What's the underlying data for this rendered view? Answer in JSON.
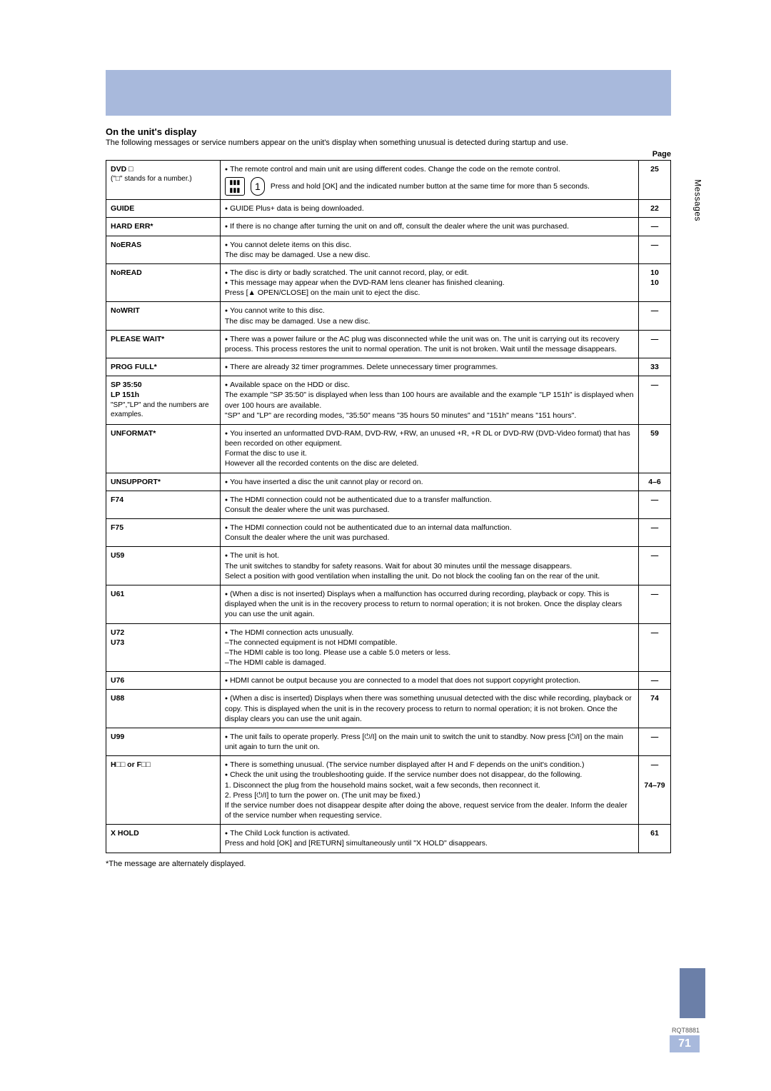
{
  "section": {
    "title": "On the unit's display",
    "desc": "The following messages or service numbers appear on the unit's display when something unusual is detected during startup and use.",
    "page_label": "Page"
  },
  "side_text": "Messages",
  "footer": {
    "code": "RQT8881",
    "page": "71"
  },
  "rows": [
    {
      "code": "DVD □",
      "code_sub": "(\"□\" stands for a number.)",
      "desc_html": "<ul class='b'><li>The remote control and main unit are using different codes. Change the code on the remote control.</li></ul><div class='callout'><span class='callout-ic1'>▮▮▮<br>▮▮▮</span><span class='callout-ic2'>1</span><span class='callout-txt'>Press and hold [OK] and the indicated number button at the same time for more than 5 seconds.</span></div>",
      "page": "25"
    },
    {
      "code": "GUIDE",
      "desc_html": "<ul class='b'><li>GUIDE Plus+ data is being downloaded.</li></ul>",
      "page": "22"
    },
    {
      "code": "HARD ERR*",
      "desc_html": "<ul class='b'><li>If there is no change after turning the unit on and off, consult the dealer where the unit was purchased.</li></ul>",
      "page": "—"
    },
    {
      "code": "NoERAS",
      "desc_html": "<ul class='b'><li>You cannot delete items on this disc.<br>The disc may be damaged. Use a new disc.</li></ul>",
      "page": "—"
    },
    {
      "code": "NoREAD",
      "desc_html": "<ul class='b'><li>The disc is dirty or badly scratched. The unit cannot record, play, or edit.</li><li>This message may appear when the DVD-RAM lens cleaner has finished cleaning.<br>Press [▲ OPEN/CLOSE] on the main unit to eject the disc.</li></ul>",
      "page": "10<br>10"
    },
    {
      "code": "NoWRIT",
      "desc_html": "<ul class='b'><li>You cannot write to this disc.<br>The disc may be damaged. Use a new disc.</li></ul>",
      "page": "—"
    },
    {
      "code": "PLEASE WAIT*",
      "desc_html": "<ul class='b'><li>There was a power failure or the AC plug was disconnected while the unit was on. The unit is carrying out its recovery process. This process restores the unit to normal operation. The unit is not broken. Wait until the message disappears.</li></ul>",
      "page": "—"
    },
    {
      "code": "PROG FULL*",
      "desc_html": "<ul class='b'><li>There are already 32 timer programmes. Delete unnecessary timer programmes.</li></ul>",
      "page": "33"
    },
    {
      "code": "SP 35:50<br>LP 151h",
      "code_sub": "\"SP\",\"LP\" and the numbers are examples.",
      "desc_html": "<ul class='b'><li>Available space on the HDD or disc.<br>The example \"SP 35:50\" is displayed when less than 100 hours are available and the example \"LP 151h\" is displayed when over 100 hours are available.<br>\"SP\" and \"LP\" are recording modes, \"35:50\" means \"35 hours 50 minutes\" and \"151h\" means \"151 hours\".</li></ul>",
      "page": "—"
    },
    {
      "code": "UNFORMAT*",
      "desc_html": "<ul class='b'><li>You inserted an unformatted DVD-RAM, DVD-RW, +RW, an unused +R, +R DL or DVD-RW (DVD-Video format) that has been recorded on other equipment.<br>Format the disc to use it.<br>However all the recorded contents on the disc are deleted.</li></ul>",
      "page": "59"
    },
    {
      "code": "UNSUPPORT*",
      "desc_html": "<ul class='b'><li>You have inserted a disc the unit cannot play or record on.</li></ul>",
      "page": "4–6"
    },
    {
      "code": "F74",
      "desc_html": "<ul class='b'><li>The HDMI connection could not be authenticated due to a transfer malfunction.<br>Consult the dealer where the unit was purchased.</li></ul>",
      "page": "—"
    },
    {
      "code": "F75",
      "desc_html": "<ul class='b'><li>The HDMI connection could not be authenticated due to an internal data malfunction.<br>Consult the dealer where the unit was purchased.</li></ul>",
      "page": "—"
    },
    {
      "code": "U59",
      "desc_html": "<ul class='b'><li>The unit is hot.<br>The unit switches to standby for safety reasons. Wait for about 30 minutes until the message disappears.<br>Select a position with good ventilation when installing the unit. Do not block the cooling fan on the rear of the unit.</li></ul>",
      "page": "—"
    },
    {
      "code": "U61",
      "desc_html": "<ul class='b'><li>(When a disc is not inserted) Displays when a malfunction has occurred during recording, playback or copy. This is displayed when the unit is in the recovery process to return to normal operation; it is not broken. Once the display clears you can use the unit again.</li></ul>",
      "page": "—"
    },
    {
      "code": "U72<br>U73",
      "desc_html": "<ul class='b'><li>The HDMI connection acts unusually.<br>–The connected equipment is not HDMI compatible.<br>–The HDMI cable is too long. Please use a cable 5.0 meters or less.<br>–The HDMI cable is damaged.</li></ul>",
      "page": "—"
    },
    {
      "code": "U76",
      "desc_html": "<ul class='b'><li>HDMI cannot be output because you are connected to a model that does not support copyright protection.</li></ul>",
      "page": "—"
    },
    {
      "code": "U88",
      "desc_html": "<ul class='b'><li>(When a disc is inserted) Displays when there was something unusual detected with the disc while recording, playback or copy. This is displayed when the unit is in the recovery process to return to normal operation; it is not broken. Once the display clears you can use the unit again.</li></ul>",
      "page": "74"
    },
    {
      "code": "U99",
      "desc_html": "<ul class='b'><li>The unit fails to operate properly. Press [⏻/I] on the main unit to switch the unit to standby. Now press [⏻/I] on the main unit again to turn the unit on.</li></ul>",
      "page": "—"
    },
    {
      "code": "H□□ or F□□",
      "desc_html": "<ul class='b'><li>There is something unusual. (The service number displayed after H and F depends on the unit's condition.)</li><li>Check the unit using the troubleshooting guide. If the service number does not disappear, do the following.<br>1. Disconnect the plug from the household mains socket, wait a few seconds, then reconnect it.<br>2. Press [⏻/I] to turn the power on. (The unit may be fixed.)<br>If the service number does not disappear despite after doing the above, request service from the dealer. Inform the dealer of the service number when requesting service.</li></ul>",
      "page": "—<br><br>74–79"
    },
    {
      "code": "X HOLD",
      "desc_html": "<ul class='b'><li>The Child Lock function is activated.<br>Press and hold [OK] and [RETURN] simultaneously until \"X HOLD\" disappears.</li></ul>",
      "page": "61"
    }
  ],
  "note": "*The message are alternately displayed."
}
